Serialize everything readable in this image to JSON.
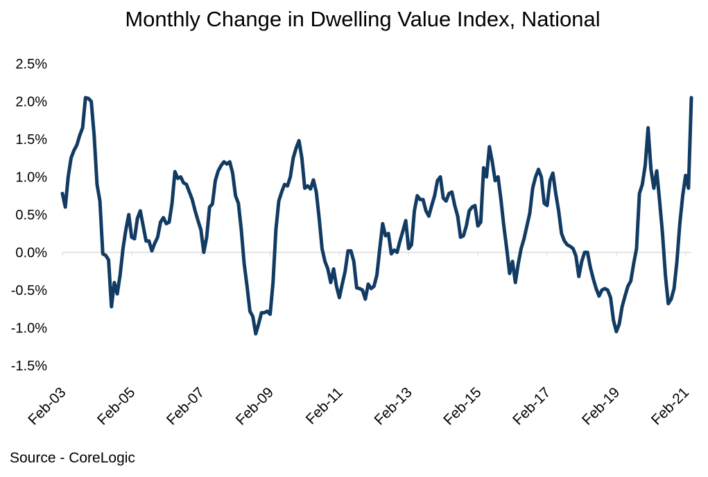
{
  "chart_data": {
    "type": "line",
    "title": "Monthly Change in Dwelling Value Index, National",
    "source": "Source - CoreLogic",
    "xlabel": "",
    "ylabel": "",
    "x_start": "2003-02",
    "x_end": "2021-02",
    "ylim": [
      -1.5,
      2.5
    ],
    "y_ticks": [
      2.5,
      2.0,
      1.5,
      1.0,
      0.5,
      0.0,
      -0.5,
      -1.0,
      -1.5
    ],
    "y_tick_labels": [
      "2.5%",
      "2.0%",
      "1.5%",
      "1.0%",
      "0.5%",
      "0.0%",
      "-0.5%",
      "-1.0%",
      "-1.5%"
    ],
    "x_tick_labels": [
      "Feb-03",
      "Feb-05",
      "Feb-07",
      "Feb-09",
      "Feb-11",
      "Feb-13",
      "Feb-15",
      "Feb-17",
      "Feb-19",
      "Feb-21"
    ],
    "grid": false,
    "legend": "none",
    "line_color": "#123b63",
    "series": [
      {
        "values": [
          0.78,
          0.6,
          1.0,
          1.25,
          1.35,
          1.42,
          1.55,
          1.65,
          2.05,
          2.04,
          2.0,
          1.55,
          0.9,
          0.68,
          -0.02,
          -0.04,
          -0.1,
          -0.72,
          -0.4,
          -0.55,
          -0.3,
          0.05,
          0.3,
          0.5,
          0.2,
          0.18,
          0.45,
          0.55,
          0.35,
          0.15,
          0.15,
          0.02,
          0.12,
          0.2,
          0.4,
          0.46,
          0.38,
          0.4,
          0.65,
          1.07,
          0.98,
          1.0,
          0.92,
          0.9,
          0.8,
          0.7,
          0.55,
          0.42,
          0.3,
          0.0,
          0.2,
          0.6,
          0.64,
          0.95,
          1.08,
          1.15,
          1.2,
          1.17,
          1.2,
          1.05,
          0.75,
          0.65,
          0.3,
          -0.15,
          -0.45,
          -0.78,
          -0.85,
          -1.08,
          -0.95,
          -0.8,
          -0.8,
          -0.78,
          -0.82,
          -0.4,
          0.3,
          0.68,
          0.8,
          0.9,
          0.88,
          1.0,
          1.25,
          1.38,
          1.48,
          1.25,
          0.85,
          0.88,
          0.84,
          0.96,
          0.8,
          0.45,
          0.05,
          -0.12,
          -0.22,
          -0.4,
          -0.22,
          -0.45,
          -0.6,
          -0.42,
          -0.25,
          0.02,
          0.02,
          -0.12,
          -0.47,
          -0.48,
          -0.5,
          -0.62,
          -0.42,
          -0.48,
          -0.45,
          -0.3,
          0.05,
          0.38,
          0.22,
          0.25,
          -0.02,
          0.03,
          0.0,
          0.15,
          0.28,
          0.42,
          0.05,
          0.1,
          0.55,
          0.75,
          0.7,
          0.7,
          0.55,
          0.48,
          0.62,
          0.75,
          0.95,
          1.0,
          0.72,
          0.68,
          0.78,
          0.8,
          0.62,
          0.48,
          0.2,
          0.22,
          0.35,
          0.55,
          0.6,
          0.62,
          0.35,
          0.4,
          1.12,
          1.0,
          1.4,
          1.2,
          0.95,
          1.0,
          0.7,
          0.35,
          0.05,
          -0.28,
          -0.12,
          -0.4,
          -0.15,
          0.05,
          0.18,
          0.35,
          0.52,
          0.85,
          1.0,
          1.1,
          1.0,
          0.65,
          0.62,
          0.95,
          1.05,
          0.78,
          0.55,
          0.25,
          0.15,
          0.1,
          0.08,
          0.05,
          -0.05,
          -0.32,
          -0.12,
          0.0,
          0.0,
          -0.2,
          -0.35,
          -0.48,
          -0.58,
          -0.5,
          -0.48,
          -0.5,
          -0.6,
          -0.9,
          -1.05,
          -0.95,
          -0.72,
          -0.58,
          -0.45,
          -0.38,
          -0.15,
          0.05,
          0.78,
          0.9,
          1.15,
          1.65,
          1.1,
          0.85,
          1.08,
          0.68,
          0.25,
          -0.3,
          -0.68,
          -0.62,
          -0.48,
          -0.12,
          0.38,
          0.75,
          1.02,
          0.85,
          2.05
        ]
      }
    ]
  }
}
